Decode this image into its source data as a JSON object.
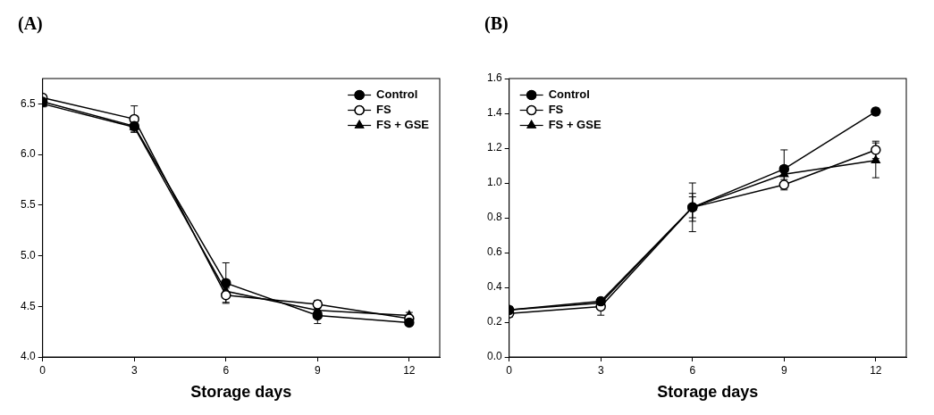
{
  "chart_data": [
    {
      "type": "line",
      "title": "(A)",
      "x_label": "Storage days",
      "x": [
        0,
        3,
        6,
        9,
        12
      ],
      "xlim": [
        0,
        13
      ],
      "xticks": [
        0,
        3,
        6,
        9,
        12
      ],
      "ylim": [
        4,
        6.75
      ],
      "yticks": [
        {
          "value": 4,
          "label": "4.0"
        },
        4.5,
        {
          "value": 5,
          "label": "5.0"
        },
        5.5,
        {
          "value": 6,
          "label": "6.0"
        },
        6.5
      ],
      "grid": false,
      "legend": "upper right",
      "series": [
        {
          "name": "Control",
          "color": "#000000",
          "marker": "circle",
          "values": [
            6.52,
            6.28,
            4.73,
            4.41,
            4.34
          ],
          "errors": [
            0.03,
            0.04,
            0.2,
            0.08,
            0.03
          ]
        },
        {
          "name": "FS",
          "color": "#000000",
          "marker": "open_circle",
          "values": [
            6.56,
            6.35,
            4.61,
            4.52,
            4.38
          ],
          "errors": [
            0.03,
            0.13,
            0.07,
            0.04,
            0.03
          ]
        },
        {
          "name": "FS + GSE",
          "color": "#000000",
          "marker": "triangle",
          "values": [
            6.5,
            6.27,
            4.65,
            4.46,
            4.41
          ],
          "errors": [
            0.03,
            0.05,
            0.05,
            0.05,
            0.03
          ]
        }
      ]
    },
    {
      "type": "line",
      "title": "(B)",
      "x_label": "Storage days",
      "x": [
        0,
        3,
        6,
        9,
        12
      ],
      "xlim": [
        0,
        13
      ],
      "xticks": [
        0,
        3,
        6,
        9,
        12
      ],
      "ylim": [
        0,
        1.6
      ],
      "yticks": [
        {
          "value": 0,
          "label": "0.0"
        },
        0.2,
        0.4,
        0.6,
        0.8,
        {
          "value": 1,
          "label": "1.0"
        },
        1.2,
        1.4,
        1.6
      ],
      "grid": false,
      "legend": "upper left",
      "series": [
        {
          "name": "Control",
          "color": "#000000",
          "marker": "circle",
          "values": [
            0.27,
            0.32,
            0.86,
            1.08,
            1.41
          ],
          "errors": [
            0.02,
            0.02,
            0.14,
            0.11,
            0.02
          ]
        },
        {
          "name": "FS",
          "color": "#000000",
          "marker": "open_circle",
          "values": [
            0.25,
            0.29,
            0.86,
            0.99,
            1.19
          ],
          "errors": [
            0.02,
            0.05,
            0.08,
            0.03,
            0.05
          ]
        },
        {
          "name": "FS + GSE",
          "color": "#000000",
          "marker": "triangle",
          "values": [
            0.27,
            0.31,
            0.86,
            1.05,
            1.13
          ],
          "errors": [
            0.02,
            0.02,
            0.06,
            0.05,
            0.1
          ]
        }
      ]
    }
  ]
}
